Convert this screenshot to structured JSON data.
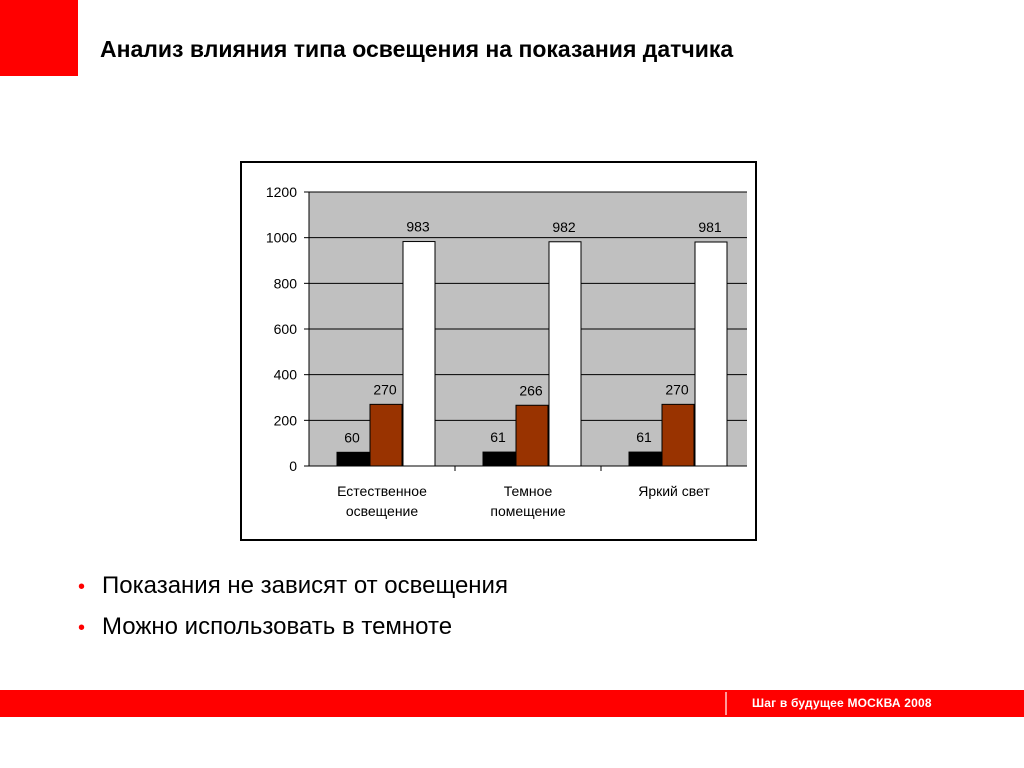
{
  "slide": {
    "title": "Анализ влияния типа освещения на показания датчика",
    "bullets": [
      "Показания не зависят от освещения",
      "Можно использовать в темноте"
    ],
    "footer": "Шаг в будущее  МОСКВА 2008"
  },
  "colors": {
    "accent": "#ff0000",
    "plot_bg": "#c0c0c0",
    "series": [
      "#000000",
      "#993300",
      "#ffffff"
    ]
  },
  "chart_data": {
    "type": "bar",
    "title": "",
    "xlabel": "",
    "ylabel": "",
    "categories": [
      [
        "Естественное",
        "освещение"
      ],
      [
        "Темное",
        "помещение"
      ],
      [
        "Яркий свет"
      ]
    ],
    "series": [
      {
        "values": [
          60,
          61,
          61
        ]
      },
      {
        "values": [
          270,
          266,
          270
        ]
      },
      {
        "values": [
          983,
          982,
          981
        ]
      }
    ],
    "ylim": [
      0,
      1200
    ],
    "yticks": [
      "0",
      "200",
      "400",
      "600",
      "800",
      "1000",
      "1200"
    ],
    "grid": true,
    "legend": "none"
  }
}
